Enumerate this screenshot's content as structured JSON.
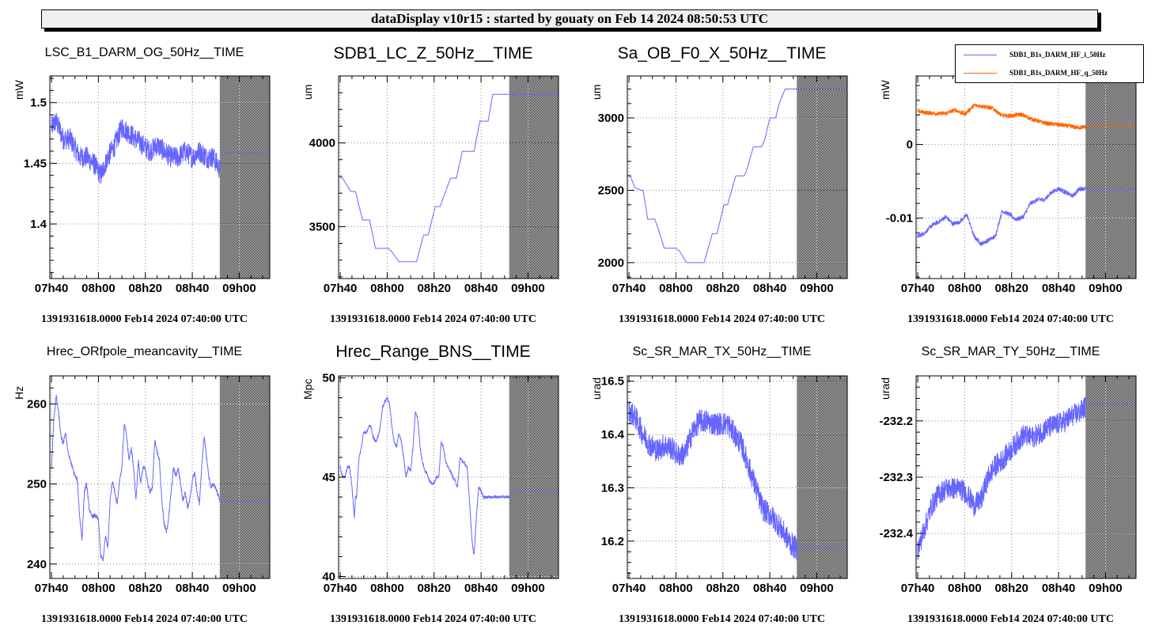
{
  "banner": {
    "title": "dataDisplay v10r15 : started by gouaty on Feb 14 2024 08:50:53 UTC"
  },
  "colors": {
    "series_blue": "#6666ff",
    "series_orange": "#ff6600",
    "grid": "#888888",
    "banner_bg": "#f0f0f0"
  },
  "legend": {
    "items": [
      {
        "label": "SDB1_B1s_DARM_HF_i_50Hz",
        "color": "#6666ff"
      },
      {
        "label": "SDB1_B1s_DARM_HF_q_50Hz",
        "color": "#ff6600"
      }
    ]
  },
  "chart_data": [
    {
      "type": "line",
      "title": "LSC_B1_DARM_OG_50Hz__TIME",
      "ylabel": "mW",
      "xlabel": "",
      "date_string": "1391931618.0000 Feb14 2024 07:40:00 UTC",
      "x_unit": "minutes since 07h40",
      "xlim": [
        -0.7,
        93
      ],
      "data_end": 71.7,
      "ylim": [
        1.355,
        1.522
      ],
      "yticks": [
        1.4,
        1.45,
        1.5
      ],
      "ytick_labels": [
        "1.4",
        "1.45",
        "1.5"
      ],
      "xticks": [
        0,
        20,
        40,
        60,
        80
      ],
      "xtick_labels": [
        "07h40",
        "08h00",
        "08h20",
        "08h40",
        "09h00"
      ],
      "grid": true,
      "noise": 0.018,
      "series": [
        {
          "name": "LSC_B1_DARM_OG_50Hz",
          "color": "#6666ff",
          "x": [
            0,
            2,
            5,
            8,
            12,
            15,
            18,
            21,
            24,
            27,
            30,
            33,
            36,
            39,
            42,
            45,
            48,
            51,
            54,
            57,
            60,
            63,
            66,
            69,
            71.7
          ],
          "y": [
            1.48,
            1.485,
            1.47,
            1.47,
            1.455,
            1.455,
            1.45,
            1.44,
            1.455,
            1.465,
            1.48,
            1.475,
            1.47,
            1.465,
            1.46,
            1.465,
            1.46,
            1.455,
            1.455,
            1.46,
            1.455,
            1.46,
            1.455,
            1.455,
            1.445
          ],
          "tail_value": 1.459
        }
      ]
    },
    {
      "type": "line",
      "title": "SDB1_LC_Z_50Hz__TIME",
      "ylabel": "um",
      "xlabel": "",
      "date_string": "1391931618.0000 Feb14 2024 07:40:00 UTC",
      "x_unit": "minutes since 07h40",
      "xlim": [
        -0.7,
        93
      ],
      "data_end": 72,
      "ylim": [
        3190,
        4400
      ],
      "yticks": [
        3500,
        4000
      ],
      "ytick_labels": [
        "3500",
        "4000"
      ],
      "xticks": [
        0,
        20,
        40,
        60,
        80
      ],
      "xtick_labels": [
        "07h40",
        "08h00",
        "08h20",
        "08h40",
        "09h00"
      ],
      "grid": true,
      "noise": 0,
      "series": [
        {
          "name": "SDB1_LC_Z_50Hz",
          "color": "#6666ff",
          "x": [
            0,
            1,
            4.5,
            6.5,
            9.5,
            12.5,
            15,
            20.5,
            22,
            25,
            32.5,
            35.5,
            37.5,
            40.5,
            42.5,
            47,
            49.5,
            52,
            57,
            59.5,
            63,
            65,
            68,
            72
          ],
          "y": [
            3790,
            3790,
            3710,
            3710,
            3540,
            3540,
            3370,
            3370,
            3350,
            3290,
            3290,
            3450,
            3450,
            3620,
            3620,
            3790,
            3790,
            3950,
            3950,
            4130,
            4130,
            4290,
            4290,
            4290
          ],
          "tail_value": 4290
        }
      ]
    },
    {
      "type": "line",
      "title": "Sa_OB_F0_X_50Hz__TIME",
      "ylabel": "um",
      "xlabel": "",
      "date_string": "1391931618.0000 Feb14 2024 07:40:00 UTC",
      "x_unit": "minutes since 07h40",
      "xlim": [
        -0.7,
        93
      ],
      "data_end": 71.5,
      "ylim": [
        1890,
        3290
      ],
      "yticks": [
        2000,
        2500,
        3000
      ],
      "ytick_labels": [
        "2000",
        "2500",
        "3000"
      ],
      "xticks": [
        0,
        20,
        40,
        60,
        80
      ],
      "xtick_labels": [
        "07h40",
        "08h00",
        "08h20",
        "08h40",
        "09h00"
      ],
      "grid": true,
      "noise": 0,
      "series": [
        {
          "name": "Sa_OB_F0_X_50Hz",
          "color": "#6666ff",
          "x": [
            0,
            0.5,
            2.5,
            5,
            6,
            8,
            11,
            12.5,
            15,
            20,
            21.5,
            24.5,
            32,
            35.5,
            37.5,
            40.5,
            42,
            45.5,
            49,
            50,
            53,
            56.5,
            58,
            60,
            62.5,
            64,
            66.5,
            71.5
          ],
          "y": [
            2600,
            2600,
            2520,
            2500,
            2500,
            2300,
            2300,
            2230,
            2100,
            2100,
            2080,
            2000,
            2000,
            2200,
            2200,
            2400,
            2400,
            2600,
            2600,
            2630,
            2800,
            2800,
            2860,
            3000,
            3000,
            3100,
            3200,
            3200
          ],
          "tail_value": 3200
        }
      ]
    },
    {
      "type": "line",
      "title": "",
      "ylabel": "mW",
      "xlabel": "",
      "date_string": "1391931618.0000 Feb14 2024 07:40:00 UTC",
      "x_unit": "minutes since 07h40",
      "xlim": [
        -0.7,
        93
      ],
      "data_end": 71.5,
      "ylim": [
        -0.0182,
        0.0093
      ],
      "yticks": [
        -0.01,
        0
      ],
      "ytick_labels": [
        "-0.01",
        "0"
      ],
      "xticks": [
        0,
        20,
        40,
        60,
        80
      ],
      "xtick_labels": [
        "07h40",
        "08h00",
        "08h20",
        "08h40",
        "09h00"
      ],
      "grid": true,
      "noise": 0.0006,
      "series": [
        {
          "name": "SDB1_B1s_DARM_HF_i_50Hz",
          "color": "#6666ff",
          "x": [
            0,
            3,
            6,
            9,
            12,
            15,
            18,
            21,
            24,
            27,
            30,
            33,
            36,
            39,
            42,
            45,
            48,
            51,
            54,
            57,
            60,
            63,
            66,
            69,
            71.5
          ],
          "y": [
            -0.0125,
            -0.012,
            -0.011,
            -0.0105,
            -0.0098,
            -0.0108,
            -0.0105,
            -0.0095,
            -0.0125,
            -0.0135,
            -0.013,
            -0.0125,
            -0.009,
            -0.0095,
            -0.0102,
            -0.0098,
            -0.008,
            -0.0075,
            -0.0075,
            -0.0065,
            -0.006,
            -0.0065,
            -0.007,
            -0.006,
            -0.006
          ],
          "tail_value": -0.006
        },
        {
          "name": "SDB1_B1s_DARM_HF_q_50Hz",
          "color": "#ff6600",
          "x": [
            0,
            4,
            8,
            12,
            16,
            20,
            24,
            28,
            32,
            36,
            40,
            44,
            48,
            52,
            56,
            60,
            64,
            68,
            71.5
          ],
          "y": [
            0.0045,
            0.0043,
            0.0042,
            0.0042,
            0.0047,
            0.0041,
            0.0053,
            0.0052,
            0.0049,
            0.0039,
            0.0039,
            0.0041,
            0.0035,
            0.0031,
            0.0028,
            0.0027,
            0.0025,
            0.0023,
            0.0024
          ],
          "tail_value": 0.0025
        }
      ]
    },
    {
      "type": "line",
      "title": "Hrec_ORfpole_meancavity__TIME",
      "ylabel": "Hz",
      "xlabel": "",
      "date_string": "1391931618.0000 Feb14 2024 07:40:00 UTC",
      "x_unit": "minutes since 07h40",
      "xlim": [
        -0.7,
        93
      ],
      "data_end": 71.7,
      "ylim": [
        238.2,
        263.5
      ],
      "yticks": [
        240,
        250,
        260
      ],
      "ytick_labels": [
        "240",
        "250",
        "260"
      ],
      "xticks": [
        0,
        20,
        40,
        60,
        80
      ],
      "xtick_labels": [
        "07h40",
        "08h00",
        "08h20",
        "08h40",
        "09h00"
      ],
      "grid": true,
      "noise": 0.5,
      "series": [
        {
          "name": "Hrec_ORfpole_meancavity",
          "color": "#6666ff",
          "x": [
            0,
            1,
            2,
            3,
            4,
            5,
            6,
            7,
            8,
            9,
            10,
            11,
            12,
            13,
            14,
            15,
            16,
            17,
            18,
            19,
            20,
            21,
            22,
            23,
            24,
            25,
            26,
            27,
            28,
            29,
            30,
            31,
            32,
            33,
            34,
            35,
            36,
            37,
            38,
            39,
            40,
            41,
            42,
            43,
            44,
            45,
            46,
            47,
            48,
            49,
            50,
            51,
            52,
            53,
            54,
            55,
            56,
            57,
            58,
            59,
            60,
            61,
            62,
            63,
            64,
            65,
            66,
            67,
            68,
            69,
            70,
            71.7
          ],
          "y": [
            252,
            258,
            261,
            259,
            256,
            255,
            256.5,
            254,
            253,
            252,
            251,
            250.5,
            246,
            243,
            249,
            250,
            247,
            246,
            246,
            246,
            245.5,
            241,
            240.5,
            243.5,
            242,
            248,
            250.5,
            249,
            247.5,
            250.5,
            252,
            257.5,
            256,
            253,
            254.5,
            252,
            248,
            253,
            250,
            252,
            252,
            250,
            249,
            249.5,
            255.5,
            254,
            253,
            248,
            245,
            244,
            246,
            249,
            252,
            251,
            252,
            250,
            248,
            249,
            247,
            248,
            250.5,
            251.5,
            249,
            247.5,
            252,
            256,
            253.5,
            251,
            249.5,
            250,
            249.5,
            248
          ],
          "tail_value": 247.8
        }
      ]
    },
    {
      "type": "line",
      "title": "Hrec_Range_BNS__TIME",
      "ylabel": "Mpc",
      "xlabel": "",
      "date_string": "1391931618.0000 Feb14 2024 07:40:00 UTC",
      "x_unit": "minutes since 07h40",
      "xlim": [
        -0.7,
        93
      ],
      "data_end": 72,
      "ylim": [
        39.9,
        50.1
      ],
      "yticks": [
        40,
        45,
        50
      ],
      "ytick_labels": [
        "40",
        "45",
        "50"
      ],
      "xticks": [
        0,
        20,
        40,
        60,
        80
      ],
      "xtick_labels": [
        "07h40",
        "08h00",
        "08h20",
        "08h40",
        "09h00"
      ],
      "grid": true,
      "noise": 0.15,
      "series": [
        {
          "name": "Hrec_Range_BNS",
          "color": "#6666ff",
          "x": [
            0,
            1,
            2,
            3,
            4,
            5,
            6,
            6.5,
            7,
            8,
            9,
            10,
            11,
            12,
            13,
            14,
            15,
            16,
            17,
            18,
            19,
            20,
            21,
            22,
            23,
            24,
            25,
            26,
            27,
            28,
            29,
            30,
            31,
            32,
            33,
            34,
            35,
            36,
            37,
            38,
            39,
            40,
            41,
            42,
            43,
            44,
            45,
            46,
            47,
            48,
            49,
            50,
            51,
            52,
            53,
            54,
            55,
            56,
            57,
            58,
            59,
            60,
            61,
            62,
            63,
            64,
            65,
            66,
            67,
            68,
            69,
            70,
            71,
            72
          ],
          "y": [
            45.5,
            45,
            45,
            45.5,
            45.5,
            44.5,
            43,
            44,
            44,
            46,
            46.5,
            47.3,
            47.2,
            47.5,
            47.6,
            47,
            46.8,
            47,
            47.5,
            48.5,
            48.8,
            49,
            48.7,
            47.5,
            46.8,
            46.5,
            47.2,
            46.8,
            46,
            45,
            45.5,
            45.3,
            46.5,
            48.3,
            48,
            46.5,
            45.8,
            45.3,
            45.2,
            44.8,
            44.7,
            44.7,
            45,
            45,
            46.8,
            46.5,
            45.7,
            45.5,
            45.3,
            45,
            44.8,
            44.5,
            46,
            45.8,
            45.7,
            45.5,
            44,
            42,
            41,
            43,
            44.5,
            44.3,
            44,
            44,
            44,
            44,
            44,
            44,
            44,
            44,
            44,
            44,
            44,
            44
          ],
          "tail_value": 44.3
        }
      ]
    },
    {
      "type": "line",
      "title": "Sc_SR_MAR_TX_50Hz__TIME",
      "ylabel": "urad",
      "xlabel": "",
      "date_string": "1391931618.0000 Feb14 2024 07:40:00 UTC",
      "x_unit": "minutes since 07h40",
      "xlim": [
        -0.7,
        93
      ],
      "data_end": 71.5,
      "ylim": [
        16.13,
        16.51
      ],
      "yticks": [
        16.2,
        16.3,
        16.4,
        16.5
      ],
      "ytick_labels": [
        "16.2",
        "16.3",
        "16.4",
        "16.5"
      ],
      "xticks": [
        0,
        20,
        40,
        60,
        80
      ],
      "xtick_labels": [
        "07h40",
        "08h00",
        "08h20",
        "08h40",
        "09h00"
      ],
      "grid": true,
      "noise": 0.045,
      "series": [
        {
          "name": "Sc_SR_MAR_TX_50Hz",
          "color": "#6666ff",
          "x": [
            0,
            3,
            6,
            9,
            12,
            15,
            18,
            21,
            24,
            27,
            30,
            33,
            36,
            39,
            42,
            45,
            48,
            51,
            54,
            57,
            60,
            63,
            66,
            69,
            71.5
          ],
          "y": [
            16.445,
            16.43,
            16.4,
            16.38,
            16.37,
            16.38,
            16.375,
            16.36,
            16.365,
            16.405,
            16.425,
            16.425,
            16.42,
            16.42,
            16.42,
            16.4,
            16.38,
            16.34,
            16.3,
            16.26,
            16.25,
            16.235,
            16.215,
            16.195,
            16.185
          ],
          "tail_value": 16.188
        }
      ]
    },
    {
      "type": "line",
      "title": "Sc_SR_MAR_TY_50Hz__TIME",
      "ylabel": "urad",
      "xlabel": "",
      "date_string": "1391931618.0000 Feb14 2024 07:40:00 UTC",
      "x_unit": "minutes since 07h40",
      "xlim": [
        -0.7,
        93
      ],
      "data_end": 71.5,
      "ylim": [
        -232.48,
        -232.12
      ],
      "yticks": [
        -232.4,
        -232.3,
        -232.2
      ],
      "ytick_labels": [
        "-232.4",
        "-232.3",
        "-232.2"
      ],
      "xticks": [
        0,
        20,
        40,
        60,
        80
      ],
      "xtick_labels": [
        "07h40",
        "08h00",
        "08h20",
        "08h40",
        "09h00"
      ],
      "grid": true,
      "noise": 0.04,
      "series": [
        {
          "name": "Sc_SR_MAR_TY_50Hz",
          "color": "#6666ff",
          "x": [
            0,
            3,
            6,
            9,
            12,
            15,
            18,
            21,
            24,
            27,
            30,
            33,
            36,
            39,
            42,
            45,
            48,
            51,
            54,
            57,
            60,
            63,
            66,
            69,
            71.5
          ],
          "y": [
            -232.43,
            -232.39,
            -232.35,
            -232.33,
            -232.32,
            -232.32,
            -232.32,
            -232.33,
            -232.35,
            -232.34,
            -232.3,
            -232.28,
            -232.27,
            -232.255,
            -232.24,
            -232.225,
            -232.23,
            -232.225,
            -232.215,
            -232.21,
            -232.205,
            -232.2,
            -232.19,
            -232.185,
            -232.175
          ],
          "tail_value": -232.17
        }
      ]
    }
  ]
}
